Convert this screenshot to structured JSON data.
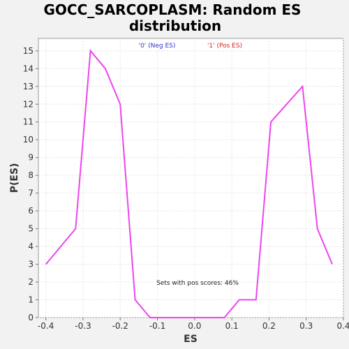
{
  "chart_data": {
    "type": "line",
    "title_line1": "GOCC_SARCOPLASM: Random ES",
    "title_line2": "distribution",
    "xlabel": "ES",
    "ylabel": "P(ES)",
    "xlim": [
      -0.42,
      0.4
    ],
    "ylim": [
      0,
      15.7
    ],
    "xticks": [
      -0.4,
      -0.3,
      -0.2,
      -0.1,
      0.0,
      0.1,
      0.2,
      0.3,
      0.4
    ],
    "xtick_labels": [
      "-0.4",
      "-0.3",
      "-0.2",
      "-0.1",
      "0.0",
      "0.1",
      "0.2",
      "0.3",
      "0.4"
    ],
    "yticks": [
      0,
      1,
      2,
      3,
      4,
      5,
      6,
      7,
      8,
      9,
      10,
      11,
      12,
      13,
      14,
      15
    ],
    "ytick_labels": [
      "0",
      "1",
      "2",
      "3",
      "4",
      "5",
      "6",
      "7",
      "8",
      "9",
      "10",
      "11",
      "12",
      "13",
      "14",
      "15"
    ],
    "grid": true,
    "legend": [
      {
        "label": "'0' (Neg ES)",
        "color": "#3333cc"
      },
      {
        "label": "'1' (Pos ES)",
        "color": "#dd2222"
      }
    ],
    "annotation": "Sets with pos scores: 46%",
    "series": [
      {
        "color": "#ee44ee",
        "points": [
          [
            -0.4,
            3
          ],
          [
            -0.32,
            5
          ],
          [
            -0.28,
            15
          ],
          [
            -0.24,
            14
          ],
          [
            -0.2,
            12
          ],
          [
            -0.16,
            1
          ],
          [
            -0.12,
            0
          ],
          [
            -0.08,
            0
          ],
          [
            -0.04,
            0
          ],
          [
            0.0,
            0
          ],
          [
            0.04,
            0
          ],
          [
            0.08,
            0
          ],
          [
            0.12,
            1
          ],
          [
            0.165,
            1
          ],
          [
            0.205,
            11
          ],
          [
            0.29,
            13
          ],
          [
            0.33,
            5
          ],
          [
            0.37,
            3
          ]
        ]
      }
    ]
  }
}
